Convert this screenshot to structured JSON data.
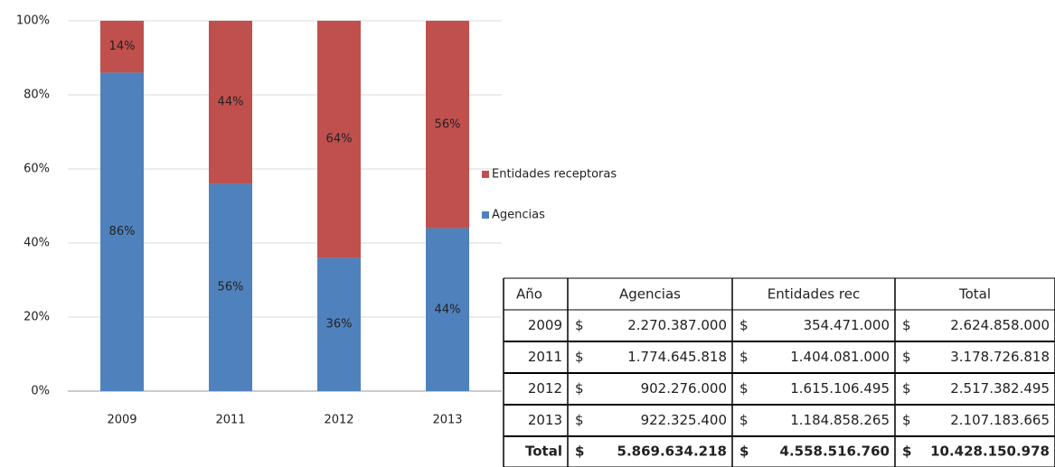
{
  "chart_data": {
    "type": "stacked_bar",
    "categories": [
      "2009",
      "2011",
      "2012",
      "2013"
    ],
    "series": [
      {
        "name": "Agencias",
        "color": "#4f81bd",
        "values": [
          86,
          56,
          36,
          44
        ],
        "value_labels": [
          "86%",
          "56%",
          "36%",
          "44%"
        ]
      },
      {
        "name": "Entidades receptoras",
        "color": "#c0504d",
        "values": [
          14,
          44,
          64,
          56
        ],
        "value_labels": [
          "14%",
          "44%",
          "64%",
          "56%"
        ]
      }
    ],
    "ylim": [
      0,
      100
    ],
    "yticks": [
      {
        "value": 0,
        "label": "0%"
      },
      {
        "value": 20,
        "label": "20%"
      },
      {
        "value": 40,
        "label": "40%"
      },
      {
        "value": 60,
        "label": "60%"
      },
      {
        "value": 80,
        "label": "80%"
      },
      {
        "value": 100,
        "label": "100%"
      }
    ],
    "grid": true,
    "legend": "right"
  },
  "table": {
    "header": [
      "Año",
      "Agencias",
      "Entidades rec",
      "Total"
    ],
    "rows": [
      [
        "2009",
        "$",
        "2.270.387.000",
        "$",
        "354.471.000",
        "$",
        "2.624.858.000"
      ],
      [
        "2011",
        "$",
        "1.774.645.818",
        "$",
        "1.404.081.000",
        "$",
        "3.178.726.818"
      ],
      [
        "2012",
        "$",
        "902.276.000",
        "$",
        "1.615.106.495",
        "$",
        "2.517.382.495"
      ],
      [
        "2013",
        "$",
        "922.325.400",
        "$",
        "1.184.858.265",
        "$",
        "2.107.183.665"
      ],
      [
        "Total",
        "$",
        "5.869.634.218",
        "$",
        "4.558.516.760",
        "$",
        "10.428.150.978"
      ]
    ]
  }
}
